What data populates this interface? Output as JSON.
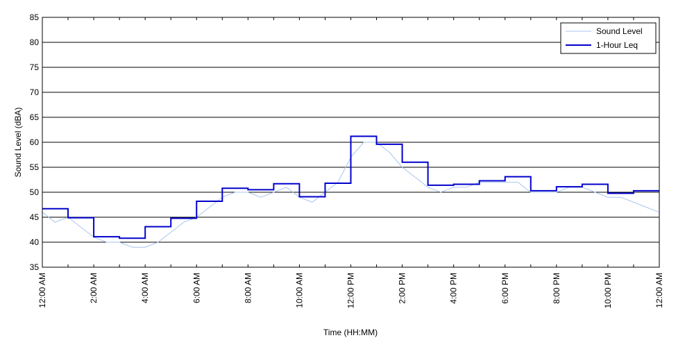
{
  "chart_data": {
    "type": "line",
    "xlabel": "Time (HH:MM)",
    "ylabel": "Sound Level (dBA)",
    "xlim": [
      0,
      24
    ],
    "ylim": [
      35,
      85
    ],
    "grid": true,
    "legend_position": "top-right",
    "x_tick_labels": [
      "12:00 AM",
      "2:00 AM",
      "4:00 AM",
      "6:00 AM",
      "8:00 AM",
      "10:00 AM",
      "12:00 PM",
      "2:00 PM",
      "4:00 PM",
      "6:00 PM",
      "8:00 PM",
      "10:00 PM",
      "12:00 AM"
    ],
    "x_tick_hours": [
      0,
      2,
      4,
      6,
      8,
      10,
      12,
      14,
      16,
      18,
      20,
      22,
      24
    ],
    "y_ticks": [
      35,
      40,
      45,
      50,
      55,
      60,
      65,
      70,
      75,
      80,
      85
    ],
    "series": [
      {
        "name": "Sound Level",
        "color": "#a9c4f0",
        "x_hours": [
          0,
          0.5,
          1,
          1.5,
          2,
          2.5,
          3,
          3.5,
          4,
          4.5,
          5,
          5.5,
          6,
          6.5,
          7,
          7.5,
          8,
          8.5,
          9,
          9.5,
          10,
          10.5,
          11,
          11.5,
          12,
          12.5,
          13,
          13.5,
          14,
          14.5,
          15,
          15.5,
          16,
          16.5,
          17,
          17.5,
          18,
          18.5,
          19,
          19.5,
          20,
          20.5,
          21,
          21.5,
          22,
          22.5,
          23,
          23.5,
          24
        ],
        "values": [
          46,
          44,
          45,
          43,
          41,
          40,
          40,
          39,
          39,
          40,
          42,
          44,
          45,
          47,
          49,
          50,
          50,
          49,
          50,
          51,
          49,
          48,
          50,
          52,
          57,
          60,
          60,
          58,
          55,
          53,
          51,
          50,
          51,
          51,
          52,
          52,
          52,
          52,
          50,
          50,
          50,
          51,
          51,
          50,
          49,
          49,
          48,
          47,
          46
        ]
      },
      {
        "name": "1-Hour Leq",
        "color": "#0000cc",
        "step": true,
        "x_hours": [
          0,
          1,
          2,
          3,
          4,
          5,
          6,
          7,
          8,
          9,
          10,
          11,
          12,
          13,
          14,
          15,
          16,
          17,
          18,
          19,
          20,
          21,
          22,
          23
        ],
        "values": [
          46.7,
          44.9,
          41.1,
          40.8,
          43.1,
          44.8,
          48.2,
          50.8,
          50.5,
          51.7,
          49.1,
          51.8,
          61.2,
          59.6,
          56.0,
          51.4,
          51.6,
          52.3,
          53.1,
          50.3,
          51.1,
          51.6,
          49.8,
          50.3
        ]
      }
    ]
  }
}
